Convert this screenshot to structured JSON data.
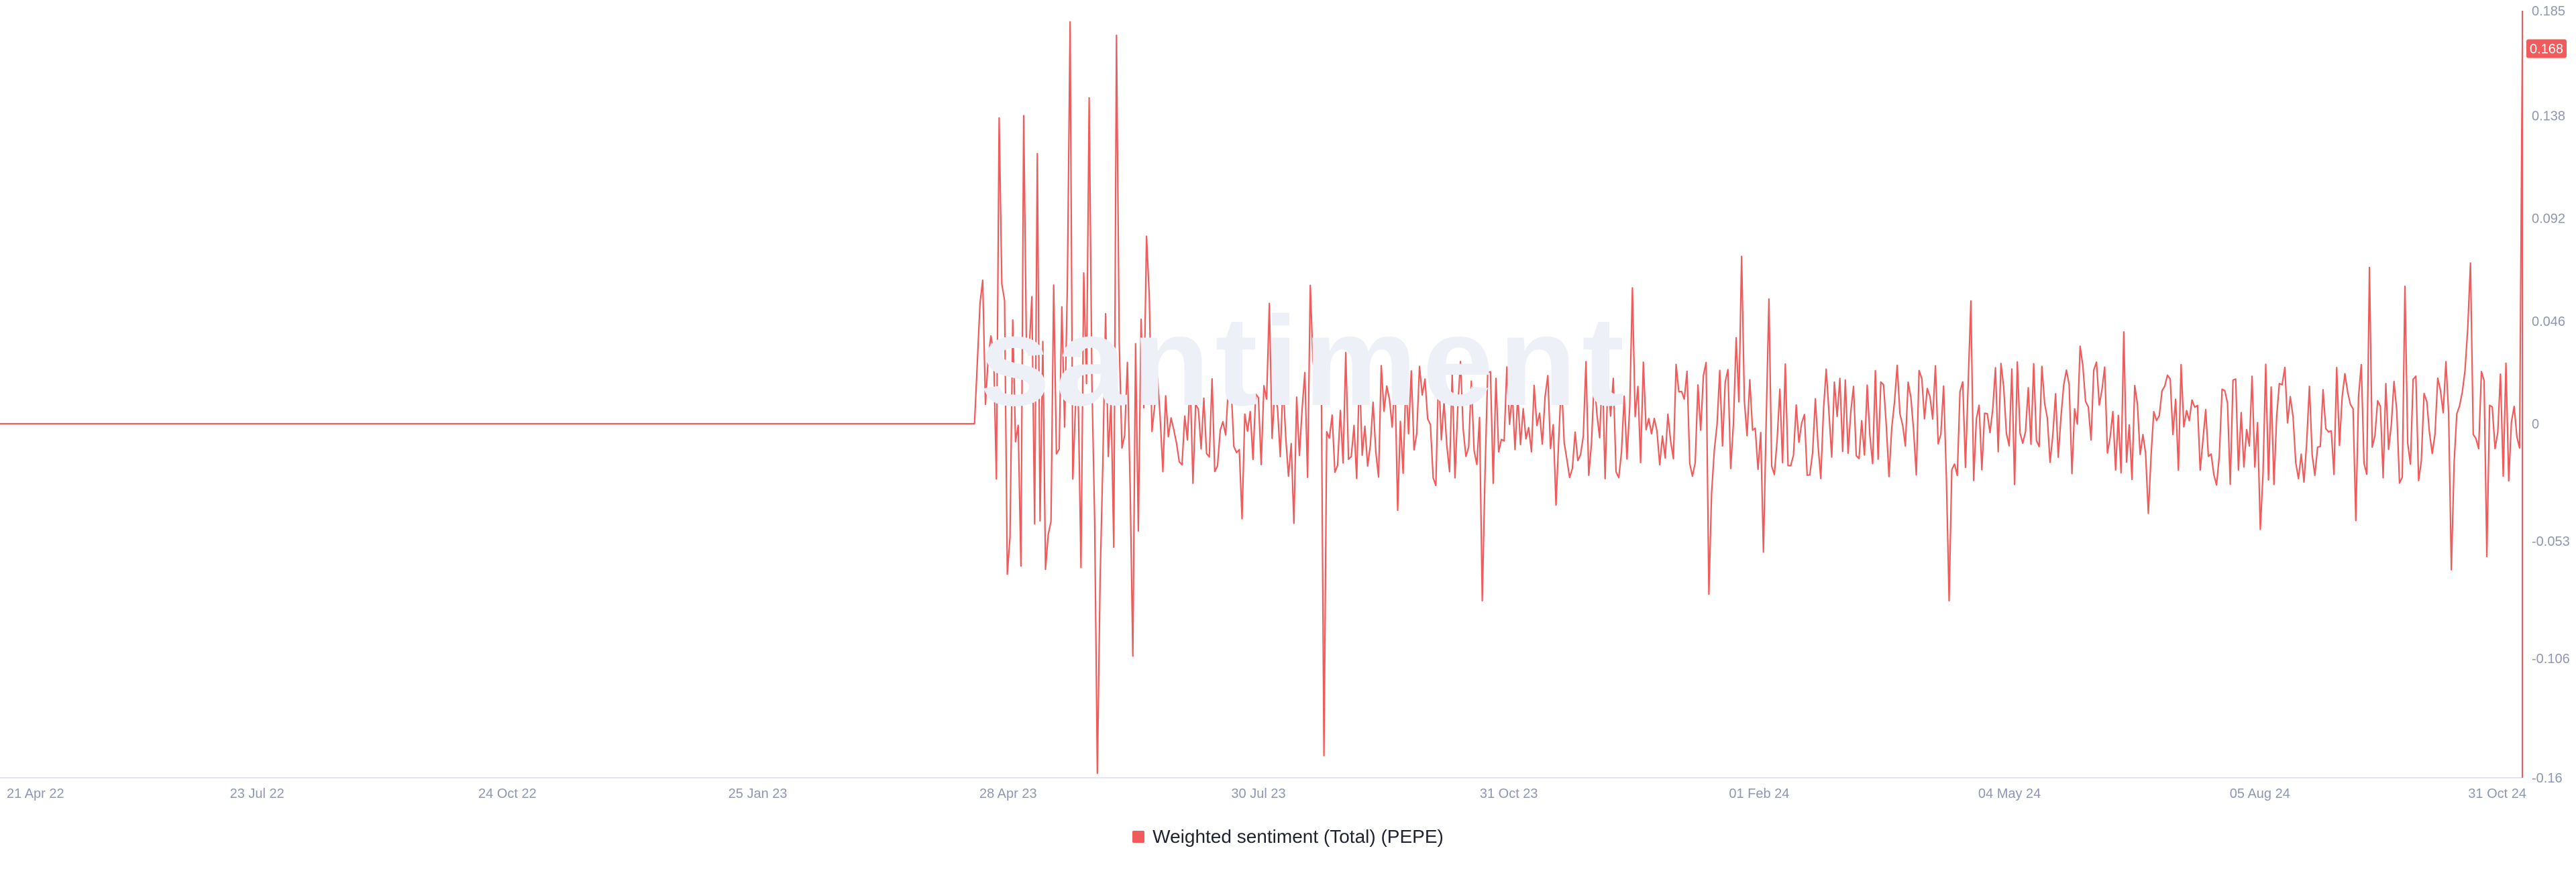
{
  "watermark": "santiment",
  "chart_data": {
    "type": "line",
    "x_tick_labels": [
      "21 Apr 22",
      "23 Jul 22",
      "24 Oct 22",
      "25 Jan 23",
      "28 Apr 23",
      "30 Jul 23",
      "31 Oct 23",
      "01 Feb 24",
      "04 May 24",
      "05 Aug 24",
      "31 Oct 24"
    ],
    "y_tick_labels": [
      "0.185",
      "0.138",
      "0.092",
      "0.046",
      "0",
      "-0.053",
      "-0.106",
      "-0.16"
    ],
    "y_ticks": [
      0.185,
      0.138,
      0.092,
      0.046,
      0,
      -0.053,
      -0.106,
      -0.16
    ],
    "ylim": [
      -0.16,
      0.185
    ],
    "x_range": [
      "2022-04-21",
      "2024-10-31"
    ],
    "grid": false,
    "legend_placement": "bottom-center",
    "last_value_label": "0.168",
    "series": [
      {
        "name": "Weighted sentiment (Total) (PEPE)",
        "color": "#f15b5b",
        "anchors": [
          [
            "2022-04-21",
            0
          ],
          [
            "2023-03-15",
            0
          ],
          [
            "2023-04-20",
            0.032
          ],
          [
            "2023-04-22",
            0.137
          ],
          [
            "2023-04-25",
            -0.068
          ],
          [
            "2023-05-01",
            0.138
          ],
          [
            "2023-05-06",
            0.121
          ],
          [
            "2023-05-10",
            -0.05
          ],
          [
            "2023-05-18",
            0.18
          ],
          [
            "2023-05-22",
            -0.065
          ],
          [
            "2023-05-25",
            0.146
          ],
          [
            "2023-05-28",
            -0.158
          ],
          [
            "2023-06-04",
            0.174
          ],
          [
            "2023-06-10",
            -0.105
          ],
          [
            "2023-06-15",
            0.084
          ],
          [
            "2023-08-08",
            -0.045
          ],
          [
            "2023-08-14",
            0.062
          ],
          [
            "2023-08-19",
            -0.15
          ],
          [
            "2023-10-16",
            -0.08
          ],
          [
            "2024-01-07",
            -0.077
          ],
          [
            "2024-01-19",
            0.075
          ],
          [
            "2024-01-27",
            -0.058
          ],
          [
            "2024-04-04",
            -0.08
          ],
          [
            "2024-04-12",
            0.055
          ],
          [
            "2024-09-05",
            0.07
          ],
          [
            "2024-10-05",
            -0.066
          ],
          [
            "2024-10-12",
            0.072
          ],
          [
            "2024-10-18",
            -0.06
          ],
          [
            "2024-10-30",
            -0.011
          ],
          [
            "2024-10-31",
            0.168
          ]
        ]
      }
    ]
  },
  "legend": {
    "label": "Weighted sentiment (Total) (PEPE)"
  }
}
